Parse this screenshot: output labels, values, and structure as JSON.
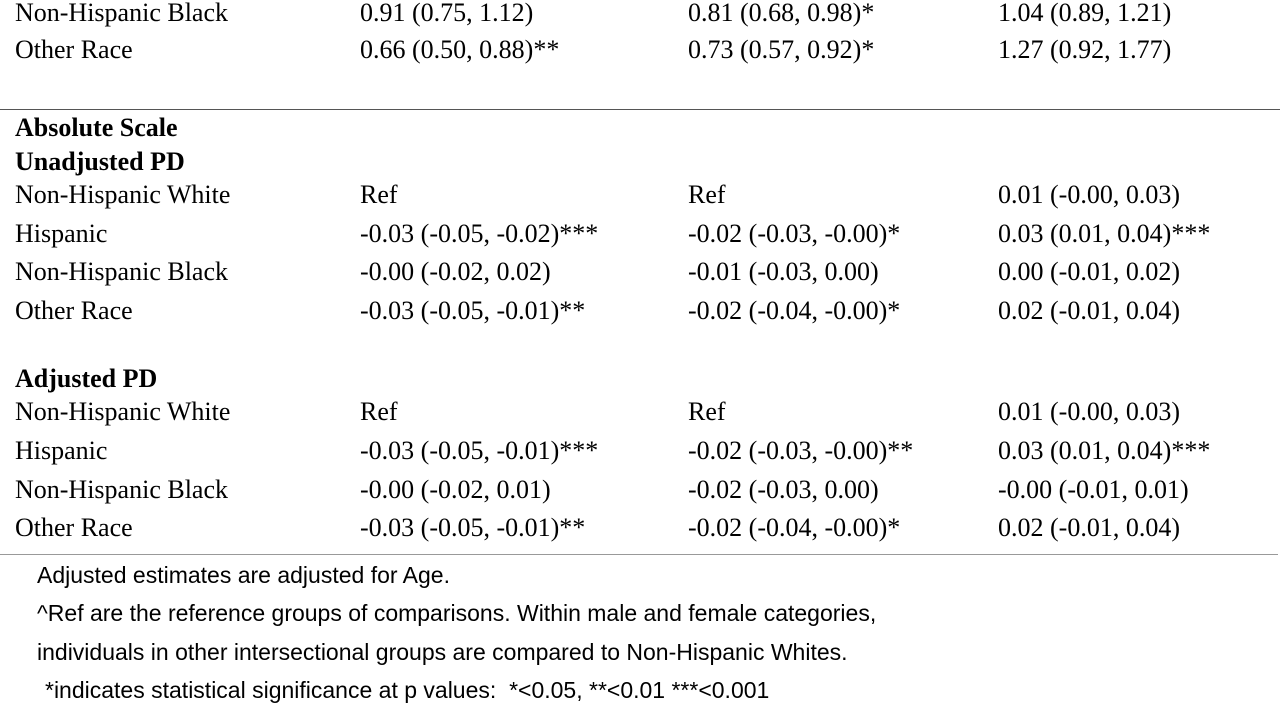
{
  "table": {
    "top_rows": [
      [
        "Non-Hispanic Black",
        "0.91 (0.75, 1.12)",
        "0.81 (0.68, 0.98)*",
        "1.04 (0.89, 1.21)"
      ],
      [
        "Other Race",
        "0.66 (0.50, 0.88)**",
        "0.73 (0.57, 0.92)*",
        "1.27 (0.92, 1.77)"
      ]
    ],
    "sections": [
      {
        "headings": [
          "Absolute Scale",
          "Unadjusted PD"
        ],
        "rows": [
          [
            "Non-Hispanic White",
            "Ref",
            "Ref",
            "0.01 (-0.00, 0.03)"
          ],
          [
            "Hispanic",
            "-0.03 (-0.05, -0.02)***",
            "-0.02 (-0.03, -0.00)*",
            "0.03 (0.01, 0.04)***"
          ],
          [
            "Non-Hispanic Black",
            "-0.00 (-0.02, 0.02)",
            "-0.01 (-0.03, 0.00)",
            "0.00 (-0.01, 0.02)"
          ],
          [
            "Other Race",
            "-0.03 (-0.05, -0.01)**",
            "-0.02 (-0.04, -0.00)*",
            "0.02 (-0.01, 0.04)"
          ]
        ]
      },
      {
        "headings": [
          "Adjusted PD"
        ],
        "rows": [
          [
            "Non-Hispanic White",
            "Ref",
            "Ref",
            "0.01 (-0.00, 0.03)"
          ],
          [
            "Hispanic",
            "-0.03 (-0.05, -0.01)***",
            "-0.02 (-0.03, -0.00)**",
            "0.03 (0.01, 0.04)***"
          ],
          [
            "Non-Hispanic Black",
            "-0.00 (-0.02, 0.01)",
            "-0.02 (-0.03, 0.00)",
            "-0.00 (-0.01, 0.01)"
          ],
          [
            "Other Race",
            "-0.03 (-0.05, -0.01)**",
            "-0.02 (-0.04, -0.00)*",
            "0.02 (-0.01, 0.04)"
          ]
        ]
      }
    ]
  },
  "notes": [
    "Adjusted estimates are adjusted for Age.",
    "^Ref are the reference groups of comparisons. Within male and female categories,",
    "individuals in other intersectional groups are compared to Non-Hispanic Whites.",
    "*indicates statistical significance at p values:  *<0.05, **<0.01 ***<0.001"
  ]
}
